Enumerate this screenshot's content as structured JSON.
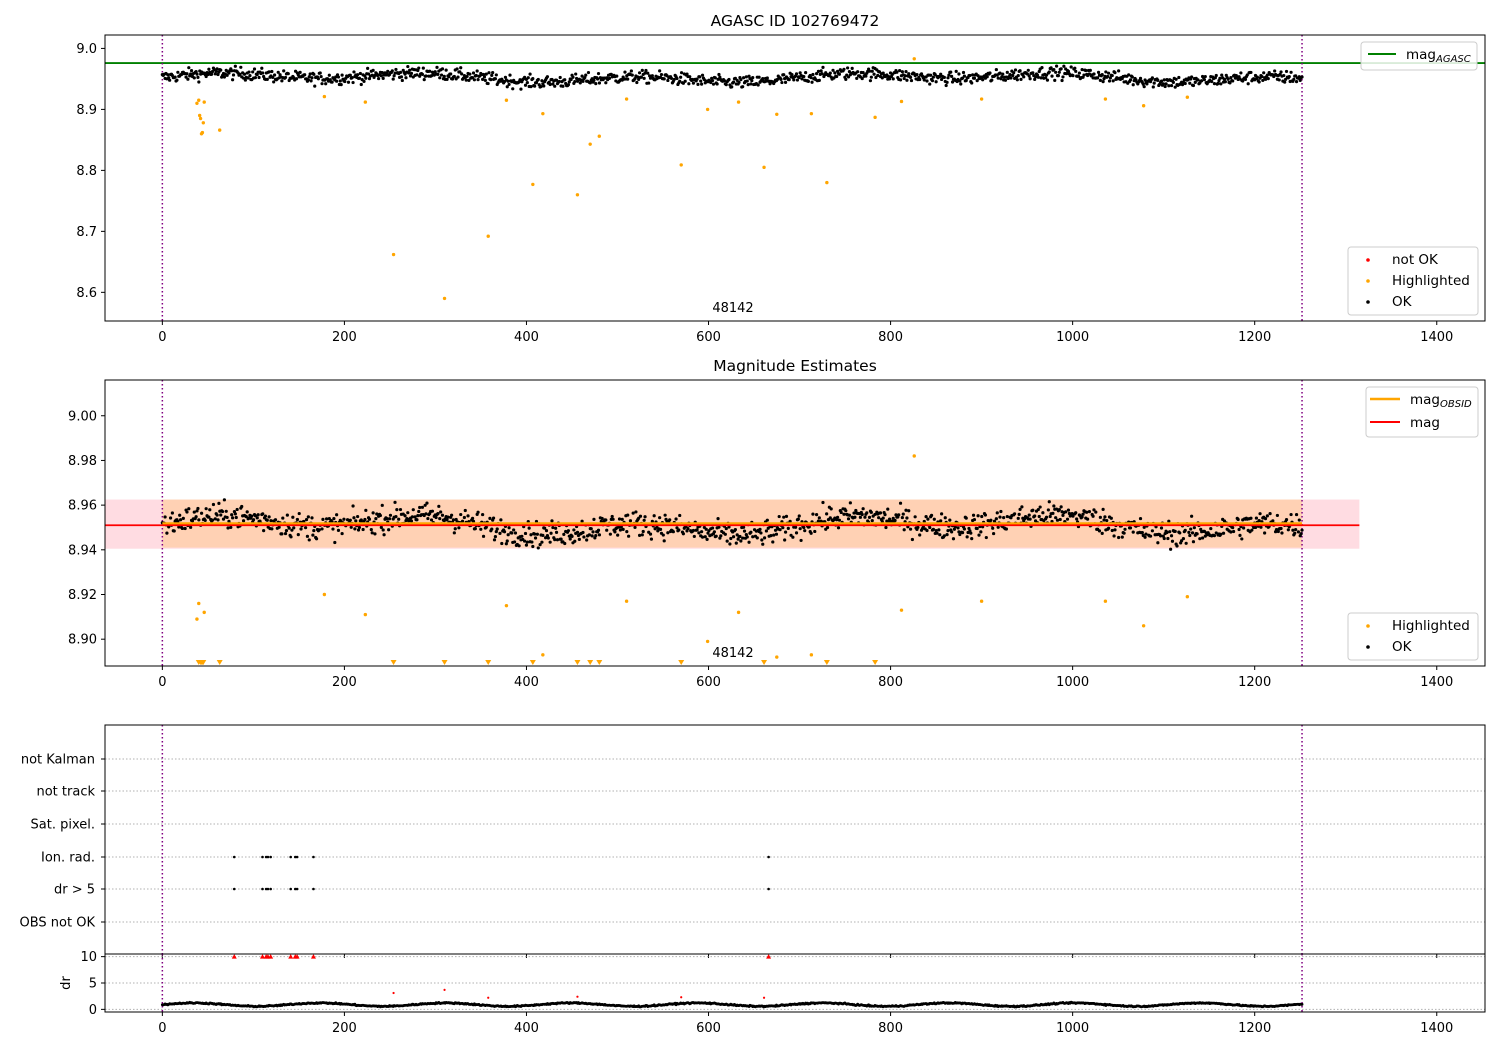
{
  "chart_data": [
    {
      "type": "scatter",
      "title": "AGASC ID 102769472",
      "xlim": [
        -63,
        1453
      ],
      "ylim": [
        8.553,
        9.022
      ],
      "x_ticks": [
        0,
        200,
        400,
        600,
        800,
        1000,
        1200,
        1400
      ],
      "y_ticks": [
        8.6,
        8.7,
        8.8,
        8.9,
        9.0
      ],
      "y_tick_labels": [
        "8.6",
        "8.7",
        "8.8",
        "8.9",
        "9.0"
      ],
      "obsid_label": "48142",
      "obsid_label_x": 625,
      "obsid_boundaries": [
        0,
        1252
      ],
      "mag_agasc": 8.976,
      "mag_agasc_xrange": [
        -63,
        1453
      ],
      "ok_points": {
        "x_range": [
          0,
          1252
        ],
        "count": 1250,
        "center": 8.952,
        "spread": 0.02
      },
      "highlighted_points": [
        [
          38,
          8.91
        ],
        [
          40,
          8.915
        ],
        [
          41,
          8.89
        ],
        [
          42,
          8.885
        ],
        [
          43,
          8.86
        ],
        [
          44,
          8.862
        ],
        [
          45,
          8.878
        ],
        [
          46,
          8.912
        ],
        [
          63,
          8.866
        ],
        [
          178,
          8.921
        ],
        [
          223,
          8.912
        ],
        [
          254,
          8.662
        ],
        [
          310,
          8.59
        ],
        [
          358,
          8.692
        ],
        [
          378,
          8.915
        ],
        [
          407,
          8.777
        ],
        [
          418,
          8.893
        ],
        [
          456,
          8.76
        ],
        [
          470,
          8.843
        ],
        [
          480,
          8.856
        ],
        [
          510,
          8.917
        ],
        [
          570,
          8.809
        ],
        [
          599,
          8.9
        ],
        [
          633,
          8.912
        ],
        [
          661,
          8.805
        ],
        [
          675,
          8.892
        ],
        [
          713,
          8.893
        ],
        [
          730,
          8.78
        ],
        [
          783,
          8.887
        ],
        [
          812,
          8.913
        ],
        [
          826,
          8.983
        ],
        [
          900,
          8.917
        ],
        [
          1036,
          8.917
        ],
        [
          1078,
          8.906
        ],
        [
          1126,
          8.92
        ]
      ],
      "legend_upper": [
        "mag",
        "AGASC"
      ],
      "legend_lower": [
        "not OK",
        "Highlighted",
        "OK"
      ],
      "colors": {
        "ok": "#000000",
        "highlighted": "#ffa500",
        "not_ok": "#ff0000",
        "agasc_line": "#008000",
        "obsid": "#800080"
      }
    },
    {
      "type": "scatter",
      "title": "Magnitude Estimates",
      "xlim": [
        -63,
        1453
      ],
      "ylim": [
        8.888,
        9.016
      ],
      "x_ticks": [
        0,
        200,
        400,
        600,
        800,
        1000,
        1200,
        1400
      ],
      "y_ticks": [
        8.9,
        8.92,
        8.94,
        8.96,
        8.98,
        9.0
      ],
      "y_tick_labels": [
        "8.90",
        "8.92",
        "8.94",
        "8.96",
        "8.98",
        "9.00"
      ],
      "obsid_label": "48142",
      "obsid_label_x": 625,
      "obsid_boundaries": [
        0,
        1252
      ],
      "mag": 8.951,
      "mag_band": [
        8.9405,
        8.9625
      ],
      "mag_xrange": [
        -63,
        1315
      ],
      "mag_obsid": 8.9518,
      "mag_obsid_band": [
        8.941,
        8.9625
      ],
      "mag_obsid_xrange": [
        0,
        1252
      ],
      "ok_points": {
        "x_range": [
          0,
          1252
        ],
        "count": 1250,
        "center": 8.951,
        "spread": 0.011
      },
      "highlighted_points": [
        [
          38,
          8.909
        ],
        [
          40,
          8.916
        ],
        [
          46,
          8.912
        ],
        [
          178,
          8.92
        ],
        [
          223,
          8.911
        ],
        [
          378,
          8.915
        ],
        [
          418,
          8.893
        ],
        [
          510,
          8.917
        ],
        [
          599,
          8.899
        ],
        [
          633,
          8.912
        ],
        [
          675,
          8.892
        ],
        [
          713,
          8.893
        ],
        [
          812,
          8.913
        ],
        [
          826,
          8.982
        ],
        [
          900,
          8.917
        ],
        [
          1036,
          8.917
        ],
        [
          1078,
          8.906
        ],
        [
          1126,
          8.919
        ]
      ],
      "clipped_low_x": [
        40,
        42,
        43,
        44,
        45,
        63,
        254,
        310,
        358,
        407,
        456,
        470,
        480,
        570,
        661,
        730,
        783
      ],
      "legend_upper": [
        [
          "mag",
          "OBSID"
        ],
        [
          "mag",
          ""
        ]
      ],
      "legend_lower": [
        "Highlighted",
        "OK"
      ],
      "colors": {
        "ok": "#000000",
        "highlighted": "#ffa500",
        "mag_line": "#ff0000",
        "mag_obsid_line": "#ffa500",
        "band": "#ffc0cb",
        "obsid": "#800080"
      }
    },
    {
      "type": "scatter",
      "title": "",
      "xlim": [
        -63,
        1453
      ],
      "x_ticks": [
        0,
        200,
        400,
        600,
        800,
        1000,
        1200,
        1400
      ],
      "flag_labels": [
        "not Kalman",
        "not track",
        "Sat. pixel.",
        "Ion. rad.",
        "dr > 5",
        "OBS not OK"
      ],
      "flags": {
        "not Kalman": [],
        "not track": [],
        "Sat. pixel.": [],
        "Ion. rad.": [
          79,
          110,
          114,
          116,
          119,
          141,
          146,
          148,
          166,
          666
        ],
        "dr > 5": [
          79,
          110,
          114,
          116,
          119,
          141,
          146,
          148,
          166,
          666
        ],
        "OBS not OK": []
      },
      "obsid_boundaries": [
        0,
        1252
      ]
    },
    {
      "type": "scatter",
      "title": "",
      "ylabel": "dr",
      "xlim": [
        -63,
        1453
      ],
      "ylim": [
        -0.5,
        10.5
      ],
      "x_ticks": [
        0,
        200,
        400,
        600,
        800,
        1000,
        1200,
        1400
      ],
      "x_tick_labels": [
        "0",
        "200",
        "400",
        "600",
        "800",
        "1000",
        "1200",
        "1400"
      ],
      "y_ticks": [
        0,
        5,
        10
      ],
      "y_tick_labels": [
        "0",
        "5",
        "10"
      ],
      "points": {
        "x_range": [
          0,
          1252
        ],
        "count": 1250,
        "center": 0.9,
        "spread": 0.4
      },
      "large_points": [
        [
          79,
          10
        ],
        [
          110,
          10
        ],
        [
          114,
          10
        ],
        [
          116,
          10
        ],
        [
          119,
          10
        ],
        [
          141,
          10
        ],
        [
          146,
          10
        ],
        [
          148,
          10
        ],
        [
          166,
          10
        ],
        [
          666,
          10
        ]
      ],
      "outlier_points": [
        [
          254,
          3.1
        ],
        [
          310,
          3.7
        ],
        [
          358,
          2.2
        ],
        [
          456,
          2.4
        ],
        [
          570,
          2.3
        ],
        [
          661,
          2.2
        ]
      ],
      "obsid_boundaries": [
        0,
        1252
      ],
      "colors": {
        "ok": "#000000",
        "large": "#ff0000"
      }
    }
  ]
}
